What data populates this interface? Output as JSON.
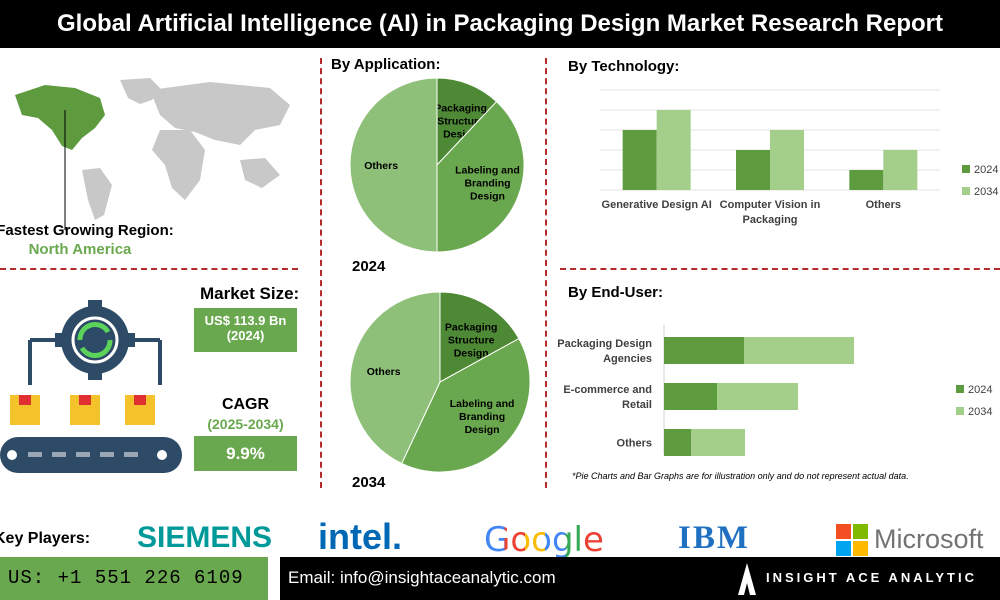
{
  "header": {
    "title": "Global Artificial Intelligence (AI) in Packaging Design Market Research Report"
  },
  "region": {
    "label": "Fastest Growing Region:",
    "value": "North America"
  },
  "market": {
    "size_label": "Market Size:",
    "size_value": "US$ 113.9 Bn",
    "size_year": "(2024)",
    "cagr_label": "CAGR",
    "cagr_period": "(2025-2034)",
    "cagr_value": "9.9%"
  },
  "application": {
    "title": "By Application:"
  },
  "technology": {
    "title": "By Technology:"
  },
  "enduser": {
    "title": "By End-User:"
  },
  "note": "*Pie Charts and Bar Graphs are for illustration only and do not represent actual data.",
  "key_players": {
    "label": "Key Players:",
    "logos": [
      "SIEMENS",
      "intel.",
      "Google",
      "IBM",
      "Microsoft"
    ]
  },
  "footer": {
    "phone": "US: +1 551 226 6109",
    "email": "Email: info@insightaceanalytic.com",
    "brand": "INSIGHT ACE ANALYTIC"
  },
  "colors": {
    "dark_green": "#5e9b3f",
    "mid_green": "#6aa84f",
    "light_green": "#a3cf8b",
    "pie_dark": "#4e8a36",
    "pie_light": "#8fc07a"
  },
  "chart_data": [
    {
      "type": "pie",
      "title": "By Application:",
      "label": "2024",
      "slices": [
        {
          "name": "Packaging Structure Design",
          "value": 12
        },
        {
          "name": "Labeling and Branding Design",
          "value": 38
        },
        {
          "name": "Others",
          "value": 50
        }
      ]
    },
    {
      "type": "pie",
      "title": "By Application:",
      "label": "2034",
      "slices": [
        {
          "name": "Packaging Structure Design",
          "value": 17
        },
        {
          "name": "Labeling and Branding Design",
          "value": 40
        },
        {
          "name": "Others",
          "value": 43
        }
      ]
    },
    {
      "type": "bar",
      "title": "By Technology:",
      "categories": [
        "Generative Design AI",
        "Computer Vision in Packaging",
        "Others"
      ],
      "series": [
        {
          "name": "2024",
          "values": [
            60,
            40,
            20
          ]
        },
        {
          "name": "2034",
          "values": [
            80,
            60,
            40
          ]
        }
      ],
      "ylim": [
        0,
        100
      ],
      "legend": "right"
    },
    {
      "type": "bar",
      "orientation": "horizontal",
      "title": "By End-User:",
      "categories": [
        "Packaging Design Agencies",
        "E-commerce and Retail",
        "Others"
      ],
      "series": [
        {
          "name": "2024",
          "values": [
            80,
            53,
            27
          ]
        },
        {
          "name": "2034",
          "values": [
            110,
            81,
            54
          ]
        }
      ],
      "stacked": true,
      "xlim": [
        0,
        200
      ],
      "legend": "right"
    }
  ]
}
